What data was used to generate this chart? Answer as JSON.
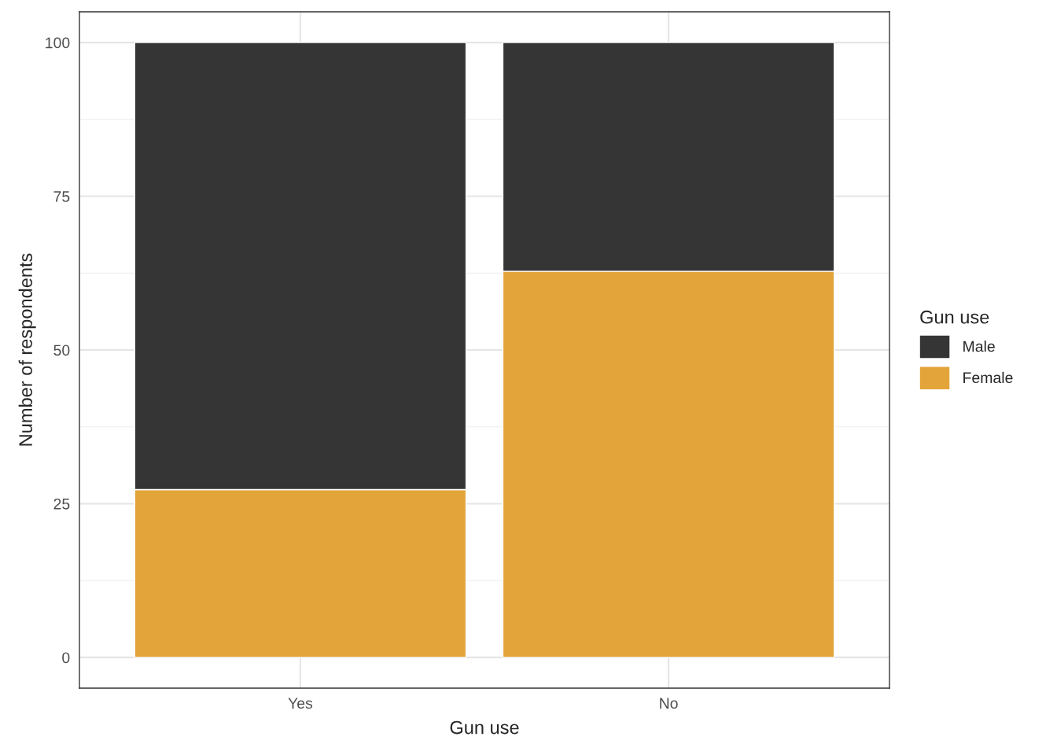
{
  "chart_data": {
    "type": "bar",
    "stacked": true,
    "xlabel": "Gun use",
    "ylabel": "Number of respondents",
    "legend_title": "Gun use",
    "categories": [
      "Yes",
      "No"
    ],
    "series": [
      {
        "name": "Female",
        "color": "#e3a43a",
        "values": [
          27.3,
          62.8
        ]
      },
      {
        "name": "Male",
        "color": "#353535",
        "values": [
          72.7,
          37.2
        ]
      }
    ],
    "ylim": [
      -5,
      105
    ],
    "yticks": [
      0,
      25,
      50,
      75,
      100
    ],
    "grid": true,
    "legend": "right"
  }
}
